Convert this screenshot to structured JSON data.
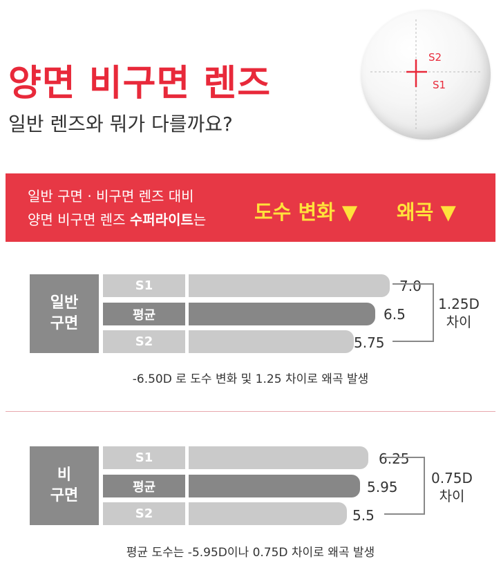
{
  "header": {
    "title": "양면 비구면 렌즈",
    "subtitle": "일반 렌즈와 뭐가 다를까요?"
  },
  "lens_diagram": {
    "label_top": "S2",
    "label_bottom": "S1"
  },
  "banner": {
    "line1": "일반 구면 · 비구면 렌즈 대비",
    "line2_prefix": "양면 비구면 렌즈 ",
    "line2_bold": "수퍼라이트",
    "line2_suffix": "는",
    "highlight1": "도수 변화 ▼",
    "highlight2": "왜곡 ▼"
  },
  "groups": [
    {
      "side_label_1": "일반",
      "side_label_2": "구면",
      "rows": [
        {
          "label": "S1",
          "value_text": "7.0",
          "value": 7.0
        },
        {
          "label": "평균",
          "value_text": "6.5",
          "value": 6.5
        },
        {
          "label": "S2",
          "value_text": "5.75",
          "value": 5.75
        }
      ],
      "diff_1": "1.25D",
      "diff_2": "차이",
      "note": "-6.50D 로 도수 변화 및 1.25 차이로 왜곡 발생"
    },
    {
      "side_label_1": "비",
      "side_label_2": "구면",
      "rows": [
        {
          "label": "S1",
          "value_text": "6.25",
          "value": 6.25
        },
        {
          "label": "평균",
          "value_text": "5.95",
          "value": 5.95
        },
        {
          "label": "S2",
          "value_text": "5.5",
          "value": 5.5
        }
      ],
      "diff_1": "0.75D",
      "diff_2": "차이",
      "note": "평균 도수는 -5.95D이나 0.75D 차이로 왜곡 발생"
    }
  ],
  "colors": {
    "accent_red": "#e73845",
    "highlight_yellow": "#ffe23b",
    "bar_light": "#cacaca",
    "bar_dark": "#878787"
  }
}
